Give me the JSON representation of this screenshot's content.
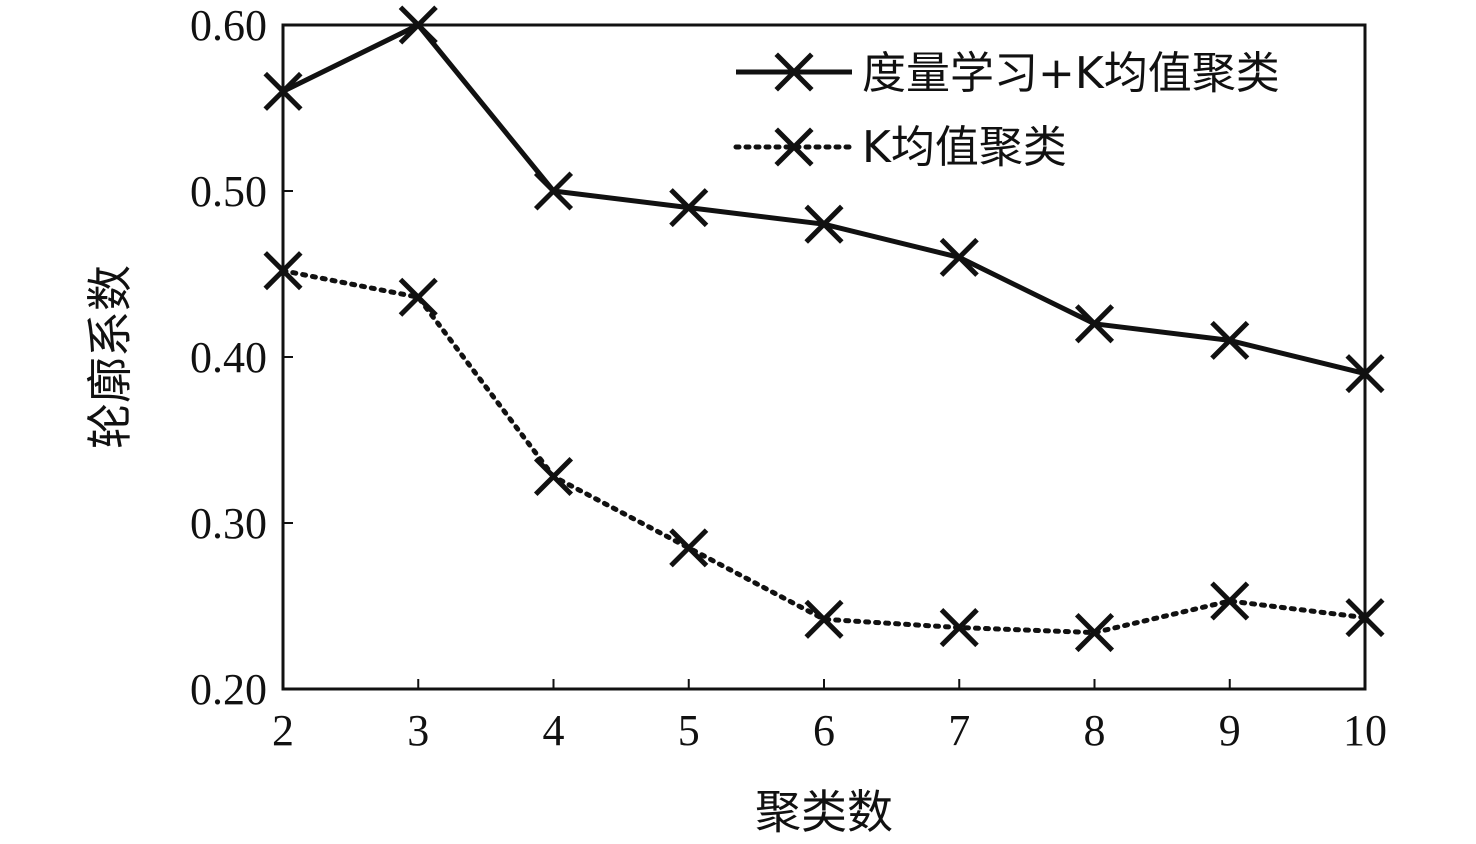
{
  "chart_data": {
    "type": "line",
    "xlabel": "聚类数",
    "ylabel": "轮廓系数",
    "x": [
      2,
      3,
      4,
      5,
      6,
      7,
      8,
      9,
      10
    ],
    "xticks": [
      "2",
      "3",
      "4",
      "5",
      "6",
      "7",
      "8",
      "9",
      "10"
    ],
    "yticks": [
      "0.20",
      "0.30",
      "0.40",
      "0.50",
      "0.60"
    ],
    "ytick_values": [
      0.2,
      0.3,
      0.4,
      0.5,
      0.6
    ],
    "xlim": [
      2,
      10
    ],
    "ylim": [
      0.2,
      0.6
    ],
    "grid": false,
    "legend_position": "top-right",
    "series": [
      {
        "name": "度量学习+K均值聚类",
        "style": "solid",
        "marker": "x",
        "color": "#111111",
        "values": [
          0.56,
          0.6,
          0.5,
          0.49,
          0.48,
          0.46,
          0.42,
          0.41,
          0.39
        ]
      },
      {
        "name": "K均值聚类",
        "style": "dotted",
        "marker": "x",
        "color": "#111111",
        "values": [
          0.452,
          0.436,
          0.328,
          0.285,
          0.242,
          0.237,
          0.234,
          0.253,
          0.243
        ]
      }
    ]
  }
}
